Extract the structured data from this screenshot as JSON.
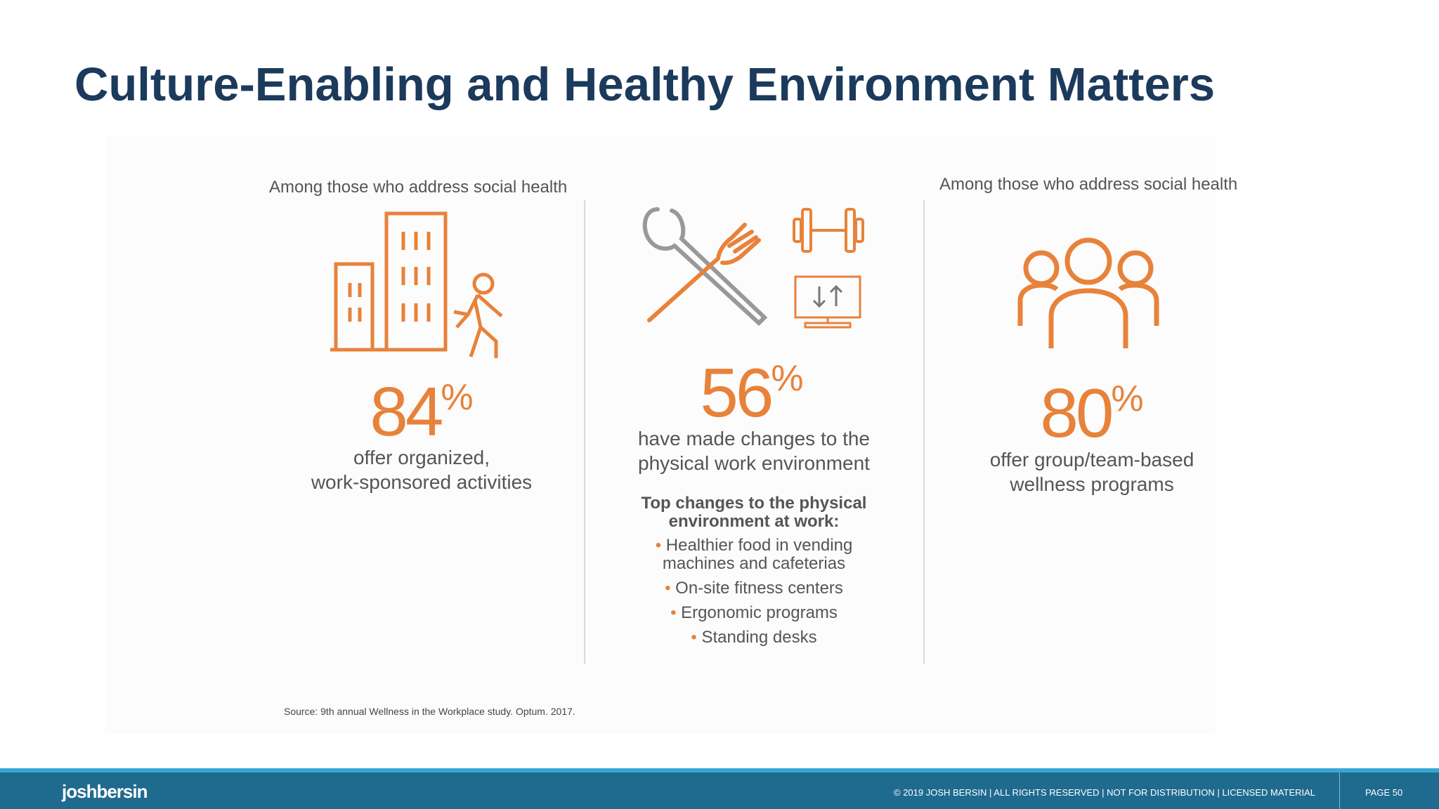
{
  "slide": {
    "title": "Culture-Enabling and Healthy Environment Matters"
  },
  "columns": [
    {
      "subtitle": "Among those who address social health",
      "value": "84",
      "unit": "%",
      "description_lines": [
        "offer organized,",
        "work-sponsored activities"
      ]
    },
    {
      "value": "56",
      "unit": "%",
      "description_lines": [
        "have made changes to the",
        "physical work environment"
      ],
      "list_heading_lines": [
        "Top changes to the physical",
        "environment at work:"
      ],
      "list_items": [
        "Healthier food in vending machines and cafeterias",
        "On-site fitness centers",
        "Ergonomic programs",
        "Standing desks"
      ]
    },
    {
      "subtitle": "Among those who address social health",
      "value": "80",
      "unit": "%",
      "description_lines": [
        "offer group/team-based",
        "wellness programs"
      ]
    }
  ],
  "source": "Source: 9th annual Wellness in the Workplace study. Optum. 2017.",
  "footer": {
    "logo": "joshbersin",
    "copyright": "© 2019 JOSH BERSIN | ALL RIGHTS RESERVED | NOT FOR DISTRIBUTION | LICENSED MATERIAL",
    "page_label": "PAGE  50"
  },
  "colors": {
    "title": "#1b3a5c",
    "accent": "#e8823a",
    "footer": "#1f6a8f",
    "footer_stripe": "#39a6d4",
    "icon_gray": "#999999"
  },
  "icons": [
    "building-walker-icon",
    "spoon-fork-icon",
    "dumbbell-icon",
    "monitor-icon",
    "people-group-icon"
  ]
}
